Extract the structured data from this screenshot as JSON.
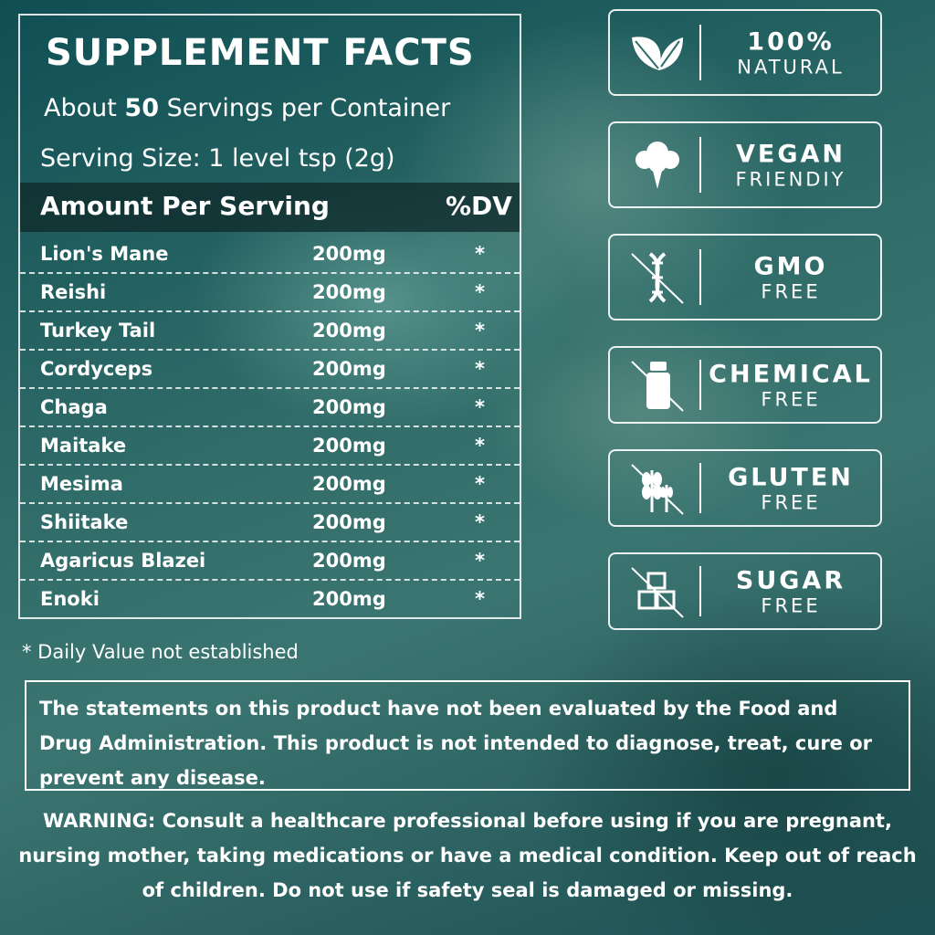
{
  "facts": {
    "title": "SUPPLEMENT FACTS",
    "servings_prefix": "About ",
    "servings_count": "50",
    "servings_suffix": " Servings per Container",
    "serving_size": "Serving Size: 1 level tsp (2g)",
    "header_left": "Amount Per Serving",
    "header_right": "%DV",
    "rows": [
      {
        "name": "Lion's Mane",
        "amount": "200mg",
        "dv": "*"
      },
      {
        "name": "Reishi",
        "amount": "200mg",
        "dv": "*"
      },
      {
        "name": "Turkey Tail",
        "amount": "200mg",
        "dv": "*"
      },
      {
        "name": "Cordyceps",
        "amount": "200mg",
        "dv": "*"
      },
      {
        "name": "Chaga",
        "amount": "200mg",
        "dv": "*"
      },
      {
        "name": "Maitake",
        "amount": "200mg",
        "dv": "*"
      },
      {
        "name": "Mesima",
        "amount": "200mg",
        "dv": "*"
      },
      {
        "name": "Shiitake",
        "amount": "200mg",
        "dv": "*"
      },
      {
        "name": "Agaricus Blazei",
        "amount": "200mg",
        "dv": "*"
      },
      {
        "name": "Enoki",
        "amount": "200mg",
        "dv": "*"
      }
    ]
  },
  "badges": [
    {
      "line1": "100%",
      "line2": "NATURAL",
      "icon": "leaf-icon"
    },
    {
      "line1": "VEGAN",
      "line2": "FRIENDIY",
      "icon": "broccoli-icon"
    },
    {
      "line1": "GMO",
      "line2": "FREE",
      "icon": "dna-crossed-icon"
    },
    {
      "line1": "CHEMICAL",
      "line2": "FREE",
      "icon": "bottle-crossed-icon"
    },
    {
      "line1": "GLUTEN",
      "line2": "FREE",
      "icon": "wheat-crossed-icon"
    },
    {
      "line1": "SUGAR",
      "line2": "FREE",
      "icon": "sugar-cubes-crossed-icon"
    }
  ],
  "footnote": "* Daily Value not established",
  "disclaimer": "The statements on this product have not been evaluated by the Food and Drug Administration. This product is not intended to diagnose, treat, cure or prevent any disease.",
  "warning": {
    "label": "WARNING:",
    "text": " Consult a healthcare professional before using if you are pregnant, nursing mother, taking medications or have a medical condition. Keep out of reach of children. Do not use if safety seal is damaged or missing."
  },
  "colors": {
    "background": "#2f6b68",
    "header_bar": "#12302f",
    "text": "#ffffff"
  }
}
